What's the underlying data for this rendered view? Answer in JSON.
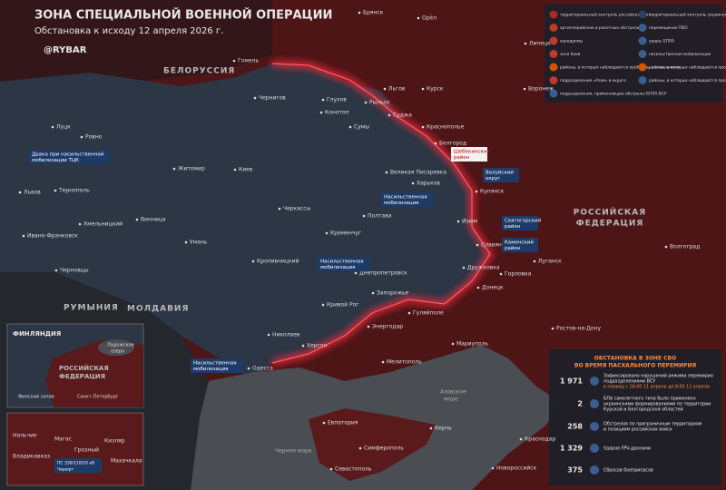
{
  "header": {
    "title": "ЗОНА СПЕЦИАЛЬНОЙ ВОЕННОЙ ОПЕРАЦИИ",
    "subtitle": "Обстановка к исходу 12 апреля 2026 г.",
    "brand": "@RYBAR"
  },
  "legend": {
    "items": [
      "территориальный контроль российских сил",
      "территориальный контроль украинских сил",
      "артиллерийские и ракетные обстрелы",
      "перемещение ПВО",
      "аэродромы",
      "удары БПЛА",
      "зона боев",
      "насильственная мобилизация",
      "районы, в которых наблюдаются проблемы с отоплением",
      "районы, в которых наблюдаются проблемы с электроснабжением",
      "подразделения «Азов» в округе",
      "районы, в которых наблюдаются проблемы с водоснабжением",
      "подразделения, применяющие обстрелы БПЛА ВСУ"
    ]
  },
  "countries": [
    "БЕЛОРУССИЯ",
    "РОССИЙСКАЯ",
    "ФЕДЕРАЦИЯ",
    "РУМЫНИЯ",
    "МОЛДАВИЯ"
  ],
  "seas": [
    "Черное море",
    "Азовское",
    "море"
  ],
  "cities": [
    "Брянск",
    "Орёл",
    "Липецк",
    "Гомель",
    "Чернигов",
    "Конотоп",
    "Сумы",
    "Курск",
    "Льгов",
    "Суджа",
    "Белгород",
    "Харьков",
    "Рыльск",
    "Воронеж",
    "Ровно",
    "Луцк",
    "Житомир",
    "Киев",
    "Львов",
    "Тернополь",
    "Хмельницкий",
    "Ивано-Франковск",
    "Черновцы",
    "Винница",
    "Черкассы",
    "Полтава",
    "Кременчуг",
    "Умань",
    "Кропивницкий",
    "Днепропетровск",
    "Изюм",
    "Купянск",
    "Донецк",
    "Луганск",
    "Горловка",
    "Запорожье",
    "Кривой Рог",
    "Николаев",
    "Херсон",
    "Одесса",
    "Мелитополь",
    "Мариуполь",
    "Ростов-на-Дону",
    "Волгоград",
    "Энергодар",
    "Севастополь",
    "Симферополь",
    "Евпатория",
    "Керчь",
    "Краснодар",
    "Новороссийск",
    "Глухов",
    "Краснополье",
    "Великая Писаревка",
    "Гуляйполе",
    "Дружковка",
    "Славянск"
  ],
  "callouts": [
    "Драка при насильственной",
    "мобилизации ТЦК",
    "Шебекинский",
    "район",
    "Валуйский",
    "округ",
    "Святогорский",
    "район",
    "Каменский",
    "район",
    "Насильственная",
    "мобилизация",
    "Насильственная",
    "мобилизация",
    "Насильственная",
    "мобилизация"
  ],
  "insets": {
    "finland": [
      "ФИНЛЯНДИЯ",
      "РОССИЙСКАЯ",
      "ФЕДЕРАЦИЯ",
      "Ладожское",
      "озеро",
      "Финский залив",
      "Санкт-Петербург"
    ],
    "caucasus": [
      "Нальчик",
      "Магас",
      "Грозный",
      "Кизляр",
      "Владикавказ",
      "Махачкала",
      "ПС 330/110/10 кВ",
      "Чирюрт"
    ]
  },
  "stats": {
    "title": [
      "ОБСТАНОВКА В ЗОНЕ СВО",
      "ВО ВРЕМЯ ПАСХАЛЬНОГО ПЕРЕМИРИЯ"
    ],
    "rows": [
      {
        "value": "1 971",
        "lines": [
          "Зафиксировано нарушений режима перемирия",
          "подразделениями ВСУ",
          "в период с 16:00 11 апреля до 8:00 12 апреля"
        ]
      },
      {
        "value": "2",
        "lines": [
          "БЛА самолетного типа было применено",
          "украинскими формированиями по территории",
          "Курской и Белгородской областей"
        ]
      },
      {
        "value": "258",
        "lines": [
          "Обстрелов по приграничным территориям",
          "и позициям российских войск"
        ]
      },
      {
        "value": "1 329",
        "lines": [
          "Ударов FPV-дронами"
        ]
      },
      {
        "value": "375",
        "lines": [
          "Сбросов боеприпасов"
        ]
      }
    ]
  }
}
